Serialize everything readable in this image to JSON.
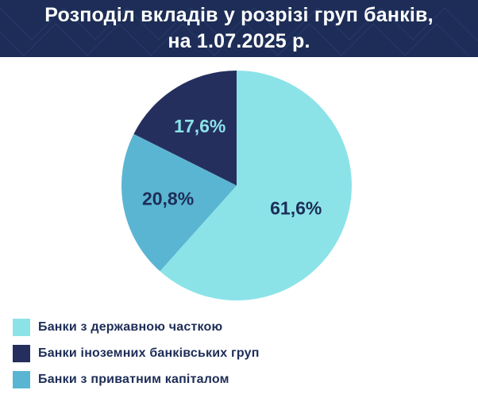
{
  "header": {
    "title_line1": "Розподіл вкладів у розрізі груп банків,",
    "title_line2": "на 1.07.2025 р."
  },
  "colors": {
    "header_bg": "#1d2d57",
    "state": "#8be3e8",
    "foreign": "#252f5e",
    "private": "#5ab5d2",
    "label_dark": "#1d2d57",
    "label_light": "#8be3e8"
  },
  "chart_data": {
    "type": "pie",
    "title": "Розподіл вкладів у розрізі груп банків, на 1.07.2025 р.",
    "unit": "%",
    "slices": [
      {
        "name": "Банки з державною часткою",
        "value": 61.6,
        "label": "61,6%",
        "color": "#8be3e8",
        "label_color": "#1d2d57"
      },
      {
        "name": "Банки з приватним капіталом",
        "value": 20.8,
        "label": "20,8%",
        "color": "#5ab5d2",
        "label_color": "#1d2d57"
      },
      {
        "name": "Банки іноземних банківських груп",
        "value": 17.6,
        "label": "17,6%",
        "color": "#252f5e",
        "label_color": "#8be3e8"
      }
    ],
    "legend_position": "bottom-left",
    "legend": [
      {
        "name": "Банки з державною часткою",
        "color": "#8be3e8"
      },
      {
        "name": "Банки іноземних банківських груп",
        "color": "#252f5e"
      },
      {
        "name": "Банки з приватним капіталом",
        "color": "#5ab5d2"
      }
    ]
  }
}
